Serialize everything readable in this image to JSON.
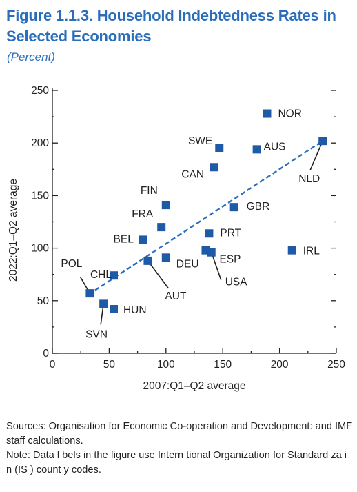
{
  "title": "Figure 1.1.3. Household Indebtedness Rates in Selected Economies",
  "subtitle": "(Percent)",
  "notes": {
    "sources": "Sources: Organisation for Economic Co-operation and Development: and IMF staff calculations.",
    "note": "Note: Data l bels in the figure use Intern tional Organization for Standard za i n (IS ) count y codes."
  },
  "colors": {
    "accent": "#2a6ebb",
    "marker": "#1f5aa6",
    "text": "#231f20"
  },
  "chart_data": {
    "type": "scatter",
    "xlabel": "2007:Q1–Q2 average",
    "ylabel": "2022:Q1–Q2 average",
    "xlim": [
      0,
      250
    ],
    "ylim": [
      0,
      250
    ],
    "xticks": [
      0,
      50,
      100,
      150,
      200,
      250
    ],
    "yticks": [
      0,
      50,
      100,
      150,
      200,
      250
    ],
    "grid": false,
    "trendline": {
      "style": "dashed",
      "from": [
        32,
        56
      ],
      "to": [
        238,
        202
      ]
    },
    "points": [
      {
        "label": "NOR",
        "x": 189,
        "y": 228
      },
      {
        "label": "SWE",
        "x": 147,
        "y": 195
      },
      {
        "label": "AUS",
        "x": 180,
        "y": 194
      },
      {
        "label": "NLD",
        "x": 238,
        "y": 202
      },
      {
        "label": "CAN",
        "x": 142,
        "y": 177
      },
      {
        "label": "FIN",
        "x": 100,
        "y": 141
      },
      {
        "label": "GBR",
        "x": 160,
        "y": 139
      },
      {
        "label": "FRA",
        "x": 96,
        "y": 120
      },
      {
        "label": "PRT",
        "x": 138,
        "y": 114
      },
      {
        "label": "BEL",
        "x": 80,
        "y": 108
      },
      {
        "label": "IRL",
        "x": 211,
        "y": 98
      },
      {
        "label": "ESP",
        "x": 135,
        "y": 98
      },
      {
        "label": "USA",
        "x": 140,
        "y": 96
      },
      {
        "label": "DEU",
        "x": 100,
        "y": 91
      },
      {
        "label": "AUT",
        "x": 84,
        "y": 88
      },
      {
        "label": "CHL",
        "x": 54,
        "y": 74
      },
      {
        "label": "POL",
        "x": 33,
        "y": 57
      },
      {
        "label": "SVN",
        "x": 45,
        "y": 47
      },
      {
        "label": "HUN",
        "x": 54,
        "y": 42
      }
    ]
  }
}
